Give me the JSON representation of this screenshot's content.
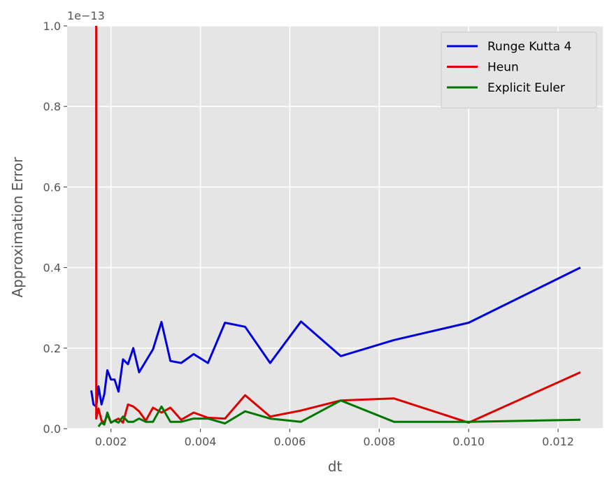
{
  "chart_data": {
    "type": "line",
    "xlabel": "dt",
    "ylabel": "Approximation Error",
    "y_offset_label": "1e−13",
    "y_scale_factor": 1e-13,
    "xlim": [
      0.00102,
      0.013
    ],
    "ylim": [
      0.0,
      1.0
    ],
    "x_ticks": [
      {
        "value": 0.002,
        "label": "0.002"
      },
      {
        "value": 0.004,
        "label": "0.004"
      },
      {
        "value": 0.006,
        "label": "0.006"
      },
      {
        "value": 0.008,
        "label": "0.008"
      },
      {
        "value": 0.01,
        "label": "0.010"
      },
      {
        "value": 0.012,
        "label": "0.012"
      }
    ],
    "y_ticks": [
      {
        "value": 0.0,
        "label": "0.0"
      },
      {
        "value": 0.2,
        "label": "0.2"
      },
      {
        "value": 0.4,
        "label": "0.4"
      },
      {
        "value": 0.6,
        "label": "0.6"
      },
      {
        "value": 0.8,
        "label": "0.8"
      },
      {
        "value": 1.0,
        "label": "1.0"
      }
    ],
    "grid": true,
    "legend_position": "top-right",
    "series": [
      {
        "name": "Runge Kutta 4",
        "color": "#0000dd",
        "x": [
          0.00156,
          0.00161,
          0.00167,
          0.00172,
          0.00179,
          0.00185,
          0.00192,
          0.002,
          0.00208,
          0.00217,
          0.00227,
          0.00238,
          0.0025,
          0.00263,
          0.00294,
          0.00313,
          0.00333,
          0.00357,
          0.00385,
          0.00417,
          0.00455,
          0.005,
          0.00556,
          0.00625,
          0.00714,
          0.00833,
          0.01,
          0.0125
        ],
        "values": [
          0.095,
          0.06,
          0.055,
          0.105,
          0.06,
          0.085,
          0.145,
          0.122,
          0.122,
          0.092,
          0.172,
          0.16,
          0.2,
          0.14,
          0.197,
          0.265,
          0.168,
          0.163,
          0.185,
          0.163,
          0.263,
          0.253,
          0.163,
          0.266,
          0.18,
          0.22,
          0.263,
          0.4
        ]
      },
      {
        "name": "Heun",
        "color": "#dd0000",
        "x": [
          0.00167,
          0.00167,
          0.00172,
          0.00179,
          0.00185,
          0.00192,
          0.002,
          0.00208,
          0.00217,
          0.00227,
          0.00238,
          0.0025,
          0.00263,
          0.00278,
          0.00294,
          0.00313,
          0.00333,
          0.00357,
          0.00385,
          0.00417,
          0.00455,
          0.005,
          0.00556,
          0.00625,
          0.00714,
          0.00833,
          0.01,
          0.0125
        ],
        "values": [
          1.0,
          0.025,
          0.05,
          0.02,
          0.015,
          0.035,
          0.015,
          0.02,
          0.025,
          0.015,
          0.06,
          0.055,
          0.043,
          0.02,
          0.052,
          0.04,
          0.052,
          0.022,
          0.04,
          0.027,
          0.025,
          0.083,
          0.03,
          0.045,
          0.07,
          0.075,
          0.015,
          0.14
        ]
      },
      {
        "name": "Explicit Euler",
        "color": "#007700",
        "x": [
          0.00172,
          0.00179,
          0.00185,
          0.00192,
          0.002,
          0.00208,
          0.00217,
          0.00227,
          0.00238,
          0.0025,
          0.00263,
          0.00278,
          0.00294,
          0.00313,
          0.00333,
          0.00357,
          0.00385,
          0.00417,
          0.00455,
          0.005,
          0.00556,
          0.00625,
          0.00714,
          0.00833,
          0.01,
          0.0125
        ],
        "values": [
          0.005,
          0.015,
          0.01,
          0.04,
          0.015,
          0.02,
          0.015,
          0.03,
          0.017,
          0.017,
          0.025,
          0.017,
          0.017,
          0.055,
          0.017,
          0.017,
          0.025,
          0.025,
          0.013,
          0.043,
          0.025,
          0.017,
          0.07,
          0.017,
          0.017,
          0.022
        ]
      }
    ]
  }
}
